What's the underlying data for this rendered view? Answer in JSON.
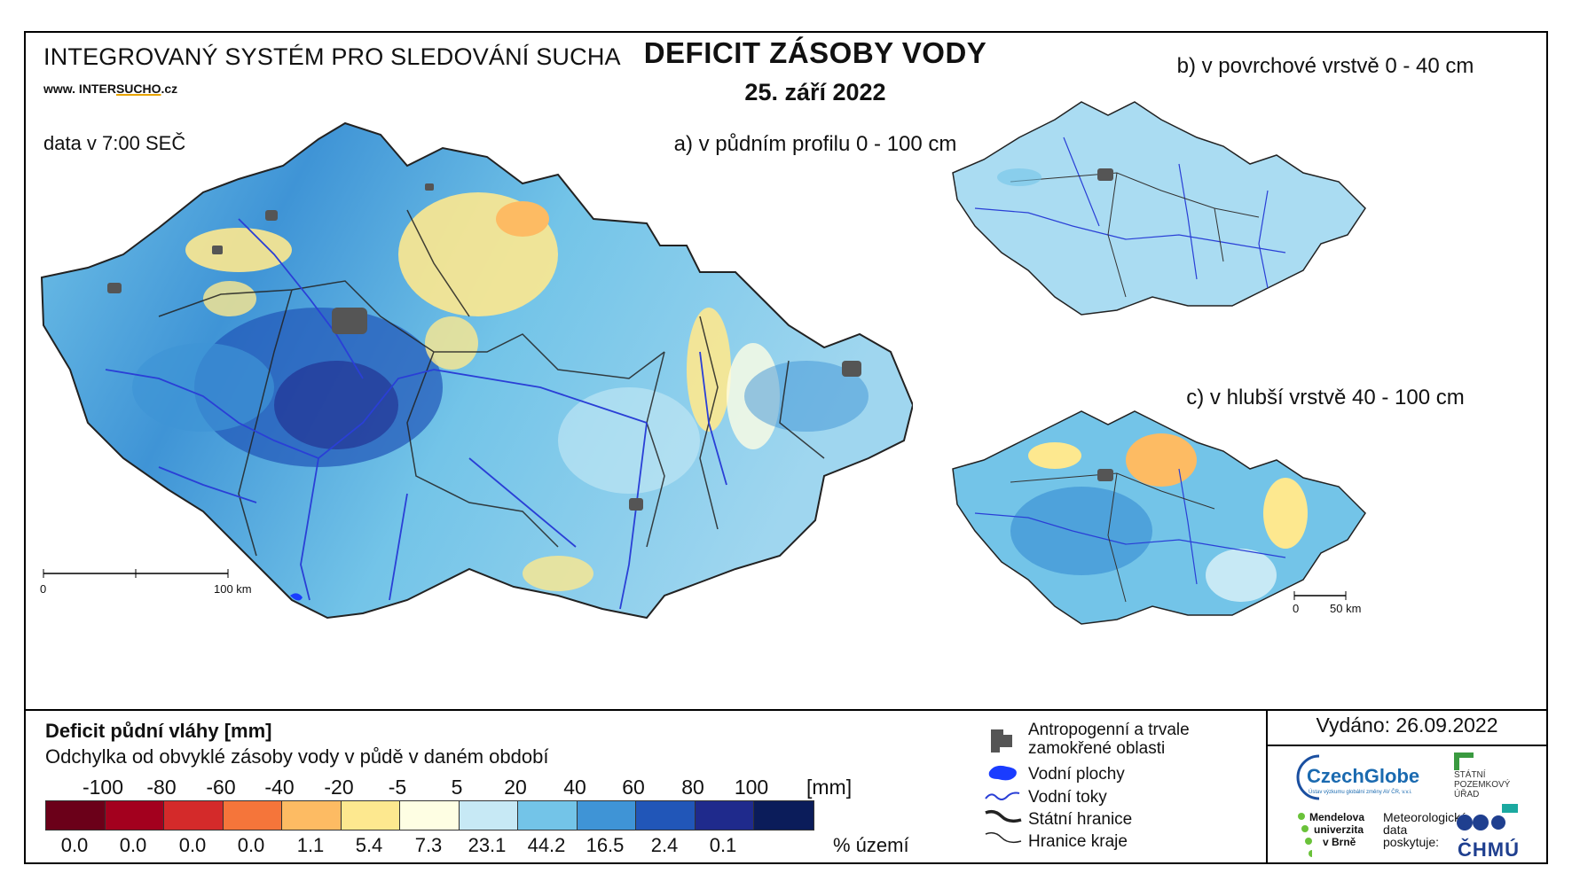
{
  "header": {
    "system_title": "INTEGROVANÝ SYSTÉM PRO SLEDOVÁNÍ SUCHA",
    "url_prefix": "www. INTER",
    "url_brand": "SUCHO",
    "url_suffix": ".cz",
    "data_time": "data v 7:00 SEČ",
    "main_title": "DEFICIT ZÁSOBY VODY",
    "date": "25. září 2022"
  },
  "maps": {
    "a": {
      "label": "a) v půdním profilu 0 - 100 cm",
      "scale_start": "0",
      "scale_end": "100 km"
    },
    "b": {
      "label": "b) v povrchové vrstvě 0 - 40 cm"
    },
    "c": {
      "label": "c) v hlubší vrstvě 40 - 100 cm",
      "scale_start": "0",
      "scale_end": "50 km"
    }
  },
  "legend": {
    "title": "Deficit půdní vláhy  [mm]",
    "subtitle": "Odchylka od obvyklé zásoby vody v půdě v daném období",
    "unit_mm": "[mm]",
    "unit_pct": "% území",
    "ticks": [
      "-100",
      "-80",
      "-60",
      "-40",
      "-20",
      "-5",
      "5",
      "20",
      "40",
      "60",
      "80",
      "100"
    ],
    "colors": [
      "#6b0019",
      "#a3001e",
      "#d42a2a",
      "#f5753a",
      "#fdbb63",
      "#fde88f",
      "#fefee3",
      "#c7e9f5",
      "#73c4e8",
      "#3f94d6",
      "#2156b8",
      "#1f2a8c",
      "#0b1c5a"
    ],
    "percentages": [
      "0.0",
      "0.0",
      "0.0",
      "0.0",
      "1.1",
      "5.4",
      "7.3",
      "23.1",
      "44.2",
      "16.5",
      "2.4",
      "0.1"
    ]
  },
  "legend_symbols": [
    {
      "icon": "urban-area-icon",
      "label_1": "Antropogenní a trvale",
      "label_2": "zamokřené oblasti"
    },
    {
      "icon": "water-body-icon",
      "label_1": "Vodní plochy",
      "label_2": ""
    },
    {
      "icon": "river-icon",
      "label_1": "Vodní toky",
      "label_2": ""
    },
    {
      "icon": "state-border-icon",
      "label_1": "Státní hranice",
      "label_2": ""
    },
    {
      "icon": "region-border-icon",
      "label_1": "Hranice kraje",
      "label_2": ""
    }
  ],
  "issued": "Vydáno: 26.09.2022",
  "logos": {
    "czechglobe": "CzechGlobe",
    "czechglobe_sub": "Ústav výzkumu globální změny AV ČR, v.v.i.",
    "spu_1": "STÁTNÍ",
    "spu_2": "POZEMKOVÝ",
    "spu_3": "ÚŘAD",
    "mendel_1": "Mendelova",
    "mendel_2": "univerzita",
    "mendel_3": "v Brně",
    "meteo_1": "Meteorologická",
    "meteo_2": "data",
    "meteo_3": "poskytuje:",
    "chmu": "ČHMÚ"
  },
  "palette": {
    "river": "#2a3fd6",
    "urban": "#555555",
    "border": "#222222"
  }
}
